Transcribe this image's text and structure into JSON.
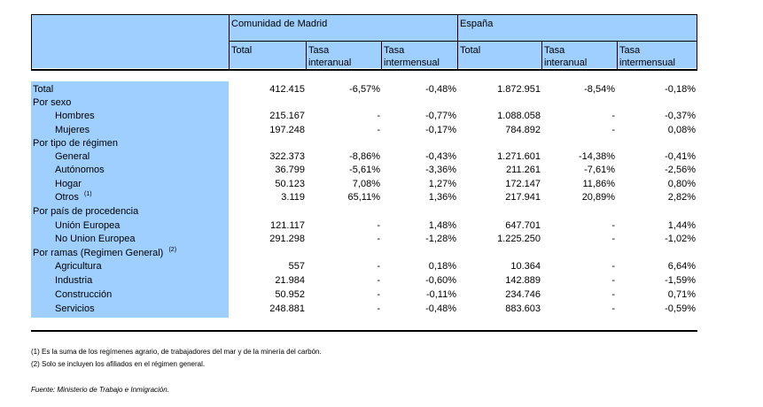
{
  "header": {
    "group_madrid": "Comunidad de Madrid",
    "group_espana": "España",
    "col_total": "Total",
    "col_interanual": [
      "Tasa",
      "interanual"
    ],
    "col_intermensual": [
      "Tasa",
      "intermensual"
    ]
  },
  "rows": [
    {
      "label": "Total",
      "indent": 0,
      "values": [
        "412.415",
        "-6,57%",
        "-0,48%",
        "1.872.951",
        "-8,54%",
        "-0,18%"
      ]
    },
    {
      "label": "Por sexo",
      "indent": 0,
      "values": [
        "",
        "",
        "",
        "",
        "",
        ""
      ]
    },
    {
      "label": "Hombres",
      "indent": 1,
      "values": [
        "215.167",
        "-",
        "-0,77%",
        "1.088.058",
        "-",
        "-0,37%"
      ]
    },
    {
      "label": "Mujeres",
      "indent": 1,
      "values": [
        "197.248",
        "-",
        "-0,17%",
        "784.892",
        "-",
        "0,08%"
      ]
    },
    {
      "label": "Por tipo de régimen",
      "indent": 0,
      "values": [
        "",
        "",
        "",
        "",
        "",
        ""
      ]
    },
    {
      "label": "General",
      "indent": 1,
      "values": [
        "322.373",
        "-8,86%",
        "-0,43%",
        "1.271.601",
        "-14,38%",
        "-0,41%"
      ]
    },
    {
      "label": "Autónomos",
      "indent": 1,
      "values": [
        "36.799",
        "-5,61%",
        "-3,36%",
        "211.261",
        "-7,61%",
        "-2,56%"
      ]
    },
    {
      "label": "Hogar",
      "indent": 1,
      "values": [
        "50.123",
        "7,08%",
        "1,27%",
        "172.147",
        "11,86%",
        "0,80%"
      ]
    },
    {
      "label": "Otros",
      "sup": "(1)",
      "indent": 1,
      "values": [
        "3.119",
        "65,11%",
        "1,36%",
        "217.941",
        "20,89%",
        "2,82%"
      ]
    },
    {
      "label": "Por país de procedencia",
      "indent": 0,
      "values": [
        "",
        "",
        "",
        "",
        "",
        ""
      ]
    },
    {
      "label": "Unión Europea",
      "indent": 1,
      "values": [
        "121.117",
        "-",
        "1,48%",
        "647.701",
        "-",
        "1,44%"
      ]
    },
    {
      "label": "No Union Europea",
      "indent": 1,
      "values": [
        "291.298",
        "-",
        "-1,28%",
        "1.225.250",
        "-",
        "-1,02%"
      ]
    },
    {
      "label": "Por ramas (Regimen General)",
      "sup": "(2)",
      "indent": 0,
      "values": [
        "",
        "",
        "",
        "",
        "",
        ""
      ]
    },
    {
      "label": "Agricultura",
      "indent": 1,
      "values": [
        "557",
        "-",
        "0,18%",
        "10.364",
        "-",
        "6,64%"
      ]
    },
    {
      "label": "Industria",
      "indent": 1,
      "values": [
        "21.984",
        "-",
        "-0,60%",
        "142.889",
        "-",
        "-1,59%"
      ]
    },
    {
      "label": "Construcción",
      "indent": 1,
      "values": [
        "50.952",
        "-",
        "-0,11%",
        "234.746",
        "-",
        "0,71%"
      ]
    },
    {
      "label": "Servicios",
      "indent": 1,
      "values": [
        "248.881",
        "-",
        "-0,48%",
        "883.603",
        "-",
        "-0,59%"
      ]
    }
  ],
  "footnotes": {
    "note1": "(1) Es la suma de los regímenes  agrario, de trabajadores del mar y de la minería del carbón.",
    "note2": "(2) Solo se incluyen los afiliados en el régimen general.",
    "source": "Fuente: Ministerio de Trabajo e Inmigración."
  },
  "colors": {
    "header_fill": "#9ecfff",
    "rule": "#000000"
  }
}
